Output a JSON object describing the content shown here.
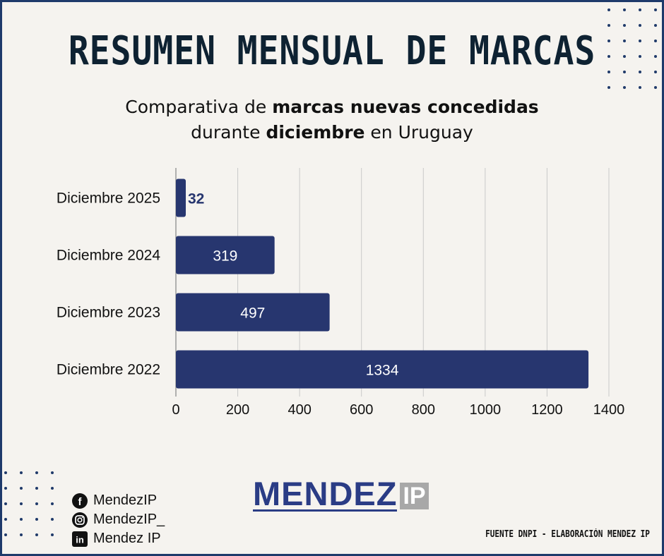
{
  "header": {
    "title": "RESUMEN MENSUAL DE MARCAS",
    "subtitle_line1_a": "Comparativa de ",
    "subtitle_line1_b": "marcas nuevas concedidas",
    "subtitle_line2_a": "durante ",
    "subtitle_line2_b": "diciembre",
    "subtitle_line2_c": " en Uruguay"
  },
  "chart_data": {
    "type": "bar",
    "orientation": "horizontal",
    "categories": [
      "Diciembre 2025",
      "Diciembre 2024",
      "Diciembre 2023",
      "Diciembre 2022"
    ],
    "values": [
      32,
      319,
      497,
      1334
    ],
    "xlim": [
      0,
      1400
    ],
    "x_ticks": [
      0,
      200,
      400,
      600,
      800,
      1000,
      1200,
      1400
    ],
    "grid": true,
    "bar_color": "#27366f",
    "grid_color": "#c9c9c9"
  },
  "social": [
    {
      "icon": "facebook-icon",
      "label": "MendezIP"
    },
    {
      "icon": "instagram-icon",
      "label": "MendezIP_"
    },
    {
      "icon": "linkedin-icon",
      "label": "Mendez IP"
    }
  ],
  "logo": {
    "main": "MENDEZ",
    "suffix": "IP"
  },
  "footer": {
    "source": "FUENTE DNPI - ELABORACIÓN MENDEZ IP"
  },
  "colors": {
    "accent": "#1e3a6b",
    "background": "#f5f3ef",
    "logo_blue": "#2a3c85",
    "logo_gray": "#a8a8a8"
  }
}
